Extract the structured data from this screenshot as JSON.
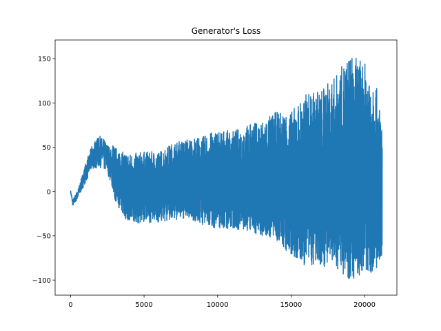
{
  "chart_data": {
    "type": "line",
    "title": "Generator's Loss",
    "xlabel": "",
    "ylabel": "",
    "xlim": [
      -1050,
      22200
    ],
    "ylim": [
      -117,
      171
    ],
    "x_ticks": [
      0,
      5000,
      10000,
      15000,
      20000
    ],
    "x_tick_labels": [
      "0",
      "5000",
      "10000",
      "15000",
      "20000"
    ],
    "y_ticks": [
      -100,
      -50,
      0,
      50,
      100,
      150
    ],
    "y_tick_labels": [
      "−100",
      "−50",
      "0",
      "50",
      "100",
      "150"
    ],
    "grid": false,
    "legend": "none",
    "series": [
      {
        "color": "#1f77b4",
        "n_points": 21200,
        "envelope": [
          {
            "x": 0,
            "low": -2,
            "high": 2,
            "center": 0
          },
          {
            "x": 150,
            "low": -18,
            "high": -8,
            "center": -13
          },
          {
            "x": 500,
            "low": -10,
            "high": 5,
            "center": -3
          },
          {
            "x": 1000,
            "low": 5,
            "high": 35,
            "center": 20
          },
          {
            "x": 1500,
            "low": 20,
            "high": 62,
            "center": 40
          },
          {
            "x": 2000,
            "low": 25,
            "high": 76,
            "center": 45
          },
          {
            "x": 2500,
            "low": 15,
            "high": 65,
            "center": 38
          },
          {
            "x": 3000,
            "low": -10,
            "high": 50,
            "center": 20
          },
          {
            "x": 3500,
            "low": -25,
            "high": 45,
            "center": 8
          },
          {
            "x": 4000,
            "low": -38,
            "high": 42,
            "center": 2
          },
          {
            "x": 5000,
            "low": -35,
            "high": 45,
            "center": 3
          },
          {
            "x": 6000,
            "low": -35,
            "high": 45,
            "center": 4
          },
          {
            "x": 7000,
            "low": -33,
            "high": 55,
            "center": 5
          },
          {
            "x": 8000,
            "low": -30,
            "high": 60,
            "center": 6
          },
          {
            "x": 9000,
            "low": -38,
            "high": 62,
            "center": 6
          },
          {
            "x": 10000,
            "low": -42,
            "high": 70,
            "center": 7
          },
          {
            "x": 11000,
            "low": -42,
            "high": 68,
            "center": 7
          },
          {
            "x": 12000,
            "low": -45,
            "high": 75,
            "center": 7
          },
          {
            "x": 13000,
            "low": -50,
            "high": 80,
            "center": 7
          },
          {
            "x": 14000,
            "low": -55,
            "high": 90,
            "center": 6
          },
          {
            "x": 15000,
            "low": -75,
            "high": 90,
            "center": 5
          },
          {
            "x": 16000,
            "low": -85,
            "high": 110,
            "center": 6
          },
          {
            "x": 17000,
            "low": -85,
            "high": 115,
            "center": 8
          },
          {
            "x": 18000,
            "low": -85,
            "high": 130,
            "center": 10
          },
          {
            "x": 19000,
            "low": -100,
            "high": 155,
            "center": 12
          },
          {
            "x": 20000,
            "low": -95,
            "high": 145,
            "center": 10
          },
          {
            "x": 20700,
            "low": -90,
            "high": 130,
            "center": 10
          },
          {
            "x": 21200,
            "low": -90,
            "high": 75,
            "center": 0
          }
        ]
      }
    ]
  }
}
